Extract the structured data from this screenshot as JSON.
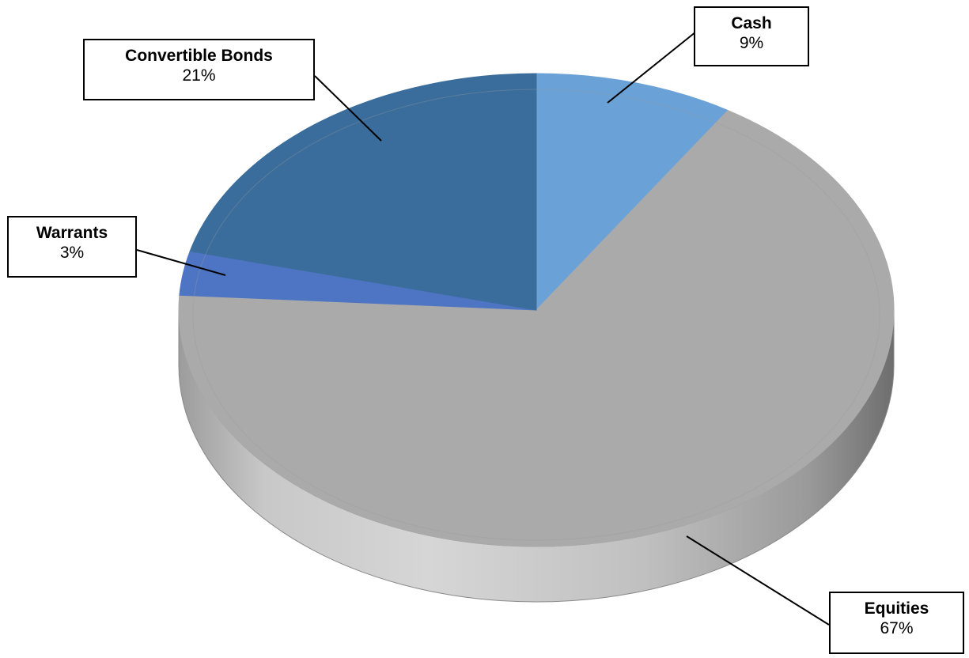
{
  "chart_data": {
    "type": "pie",
    "title": "",
    "three_d": true,
    "start_angle_deg": 0,
    "direction": "clockwise",
    "slices": [
      {
        "label": "Cash",
        "value": 9,
        "value_label": "9%",
        "color": "#6aa2d8"
      },
      {
        "label": "Equities",
        "value": 67,
        "value_label": "67%",
        "color": "#aaaaaa"
      },
      {
        "label": "Warrants",
        "value": 3,
        "value_label": "3%",
        "color": "#4e75c3"
      },
      {
        "label": "Convertible Bonds",
        "value": 21,
        "value_label": "21%",
        "color": "#3a6d9c"
      }
    ],
    "legend": "none",
    "data_labels": "callouts"
  }
}
